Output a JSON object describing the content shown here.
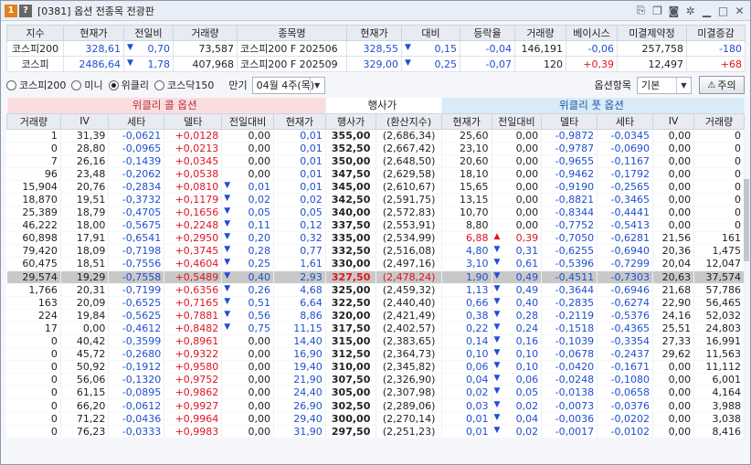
{
  "window": {
    "badges": [
      "1",
      "?"
    ],
    "title": "[0381] 옵션 전종목 전광판",
    "icons": [
      "link-icon",
      "copy-icon",
      "camera-icon",
      "gear-icon",
      "minimize-icon",
      "maximize-icon",
      "close-icon"
    ]
  },
  "index_table": {
    "left_headers": [
      "지수",
      "현재가",
      "전일비",
      "거래량"
    ],
    "right_headers": [
      "종목명",
      "현재가",
      "대비",
      "등락율",
      "거래량",
      "베이시스",
      "미결제약정",
      "미결증감"
    ],
    "left_rows": [
      {
        "name": "코스피200",
        "price": "328,61",
        "arrow": "▼",
        "change": "0,70",
        "volume": "73,587"
      },
      {
        "name": "코스피",
        "price": "2486,64",
        "arrow": "▼",
        "change": "1,78",
        "volume": "407,968"
      }
    ],
    "right_rows": [
      {
        "name": "코스피200 F 202506",
        "price": "328,55",
        "arrow": "▼",
        "change": "0,15",
        "rate": "-0,04",
        "volume": "146,191",
        "basis": "-0,06",
        "oi": "257,758",
        "oi_change": "-180"
      },
      {
        "name": "코스피200 F 202509",
        "price": "329,00",
        "arrow": "▼",
        "change": "0,25",
        "rate": "-0,07",
        "volume": "120",
        "basis": "+0,39",
        "oi": "12,497",
        "oi_change": "+68"
      }
    ]
  },
  "filter": {
    "radios": [
      {
        "label": "코스피200",
        "checked": false
      },
      {
        "label": "미니",
        "checked": false
      },
      {
        "label": "위클리",
        "checked": true
      },
      {
        "label": "코스닥150",
        "checked": false
      }
    ],
    "expiry_label": "만기",
    "expiry_value": "04월 4주(목)",
    "option_item_label": "옵션항목",
    "option_item_value": "기본",
    "warn_button": "주의"
  },
  "options": {
    "call_title": "위클리 콜 옵션",
    "strike_title": "행사가",
    "put_title": "위클리 풋 옵션",
    "call_headers": [
      "거래량",
      "IV",
      "세타",
      "델타",
      "전일대비",
      "현재가"
    ],
    "strike_headers": [
      "행사가",
      "(환산지수)"
    ],
    "put_headers": [
      "현재가",
      "전일대비",
      "델타",
      "세타",
      "IV",
      "거래량"
    ],
    "rows": [
      {
        "cv": "1",
        "civ": "31,39",
        "cth": "-0,0621",
        "cde": "+0,0128",
        "cca": "",
        "cch": "0,00",
        "cp": "0,01",
        "st": "355,00",
        "cx": "(2,686,34)",
        "pp": "25,60",
        "pca": "",
        "pch": "0,00",
        "pde": "-0,9872",
        "pth": "-0,0345",
        "piv": "0,00",
        "pv": "0"
      },
      {
        "cv": "0",
        "civ": "28,80",
        "cth": "-0,0965",
        "cde": "+0,0213",
        "cca": "",
        "cch": "0,00",
        "cp": "0,01",
        "st": "352,50",
        "cx": "(2,667,42)",
        "pp": "23,10",
        "pca": "",
        "pch": "0,00",
        "pde": "-0,9787",
        "pth": "-0,0690",
        "piv": "0,00",
        "pv": "0"
      },
      {
        "cv": "7",
        "civ": "26,16",
        "cth": "-0,1439",
        "cde": "+0,0345",
        "cca": "",
        "cch": "0,00",
        "cp": "0,01",
        "st": "350,00",
        "cx": "(2,648,50)",
        "pp": "20,60",
        "pca": "",
        "pch": "0,00",
        "pde": "-0,9655",
        "pth": "-0,1167",
        "piv": "0,00",
        "pv": "0"
      },
      {
        "cv": "96",
        "civ": "23,48",
        "cth": "-0,2062",
        "cde": "+0,0538",
        "cca": "",
        "cch": "0,00",
        "cp": "0,01",
        "st": "347,50",
        "cx": "(2,629,58)",
        "pp": "18,10",
        "pca": "",
        "pch": "0,00",
        "pde": "-0,9462",
        "pth": "-0,1792",
        "piv": "0,00",
        "pv": "0"
      },
      {
        "cv": "15,904",
        "civ": "20,76",
        "cth": "-0,2834",
        "cde": "+0,0810",
        "cca": "▼",
        "cch": "0,01",
        "cp": "0,01",
        "st": "345,00",
        "cx": "(2,610,67)",
        "pp": "15,65",
        "pca": "",
        "pch": "0,00",
        "pde": "-0,9190",
        "pth": "-0,2565",
        "piv": "0,00",
        "pv": "0"
      },
      {
        "cv": "18,870",
        "civ": "19,51",
        "cth": "-0,3732",
        "cde": "+0,1179",
        "cca": "▼",
        "cch": "0,02",
        "cp": "0,02",
        "st": "342,50",
        "cx": "(2,591,75)",
        "pp": "13,15",
        "pca": "",
        "pch": "0,00",
        "pde": "-0,8821",
        "pth": "-0,3465",
        "piv": "0,00",
        "pv": "0"
      },
      {
        "cv": "25,389",
        "civ": "18,79",
        "cth": "-0,4705",
        "cde": "+0,1656",
        "cca": "▼",
        "cch": "0,05",
        "cp": "0,05",
        "st": "340,00",
        "cx": "(2,572,83)",
        "pp": "10,70",
        "pca": "",
        "pch": "0,00",
        "pde": "-0,8344",
        "pth": "-0,4441",
        "piv": "0,00",
        "pv": "0"
      },
      {
        "cv": "46,222",
        "civ": "18,00",
        "cth": "-0,5675",
        "cde": "+0,2248",
        "cca": "▼",
        "cch": "0,11",
        "cp": "0,12",
        "st": "337,50",
        "cx": "(2,553,91)",
        "pp": "8,80",
        "pca": "",
        "pch": "0,00",
        "pde": "-0,7752",
        "pth": "-0,5413",
        "piv": "0,00",
        "pv": "0"
      },
      {
        "cv": "60,898",
        "civ": "17,91",
        "cth": "-0,6541",
        "cde": "+0,2950",
        "cca": "▼",
        "cch": "0,20",
        "cp": "0,32",
        "st": "335,00",
        "cx": "(2,534,99)",
        "pp": "6,88",
        "pca": "▲",
        "pch": "0,39",
        "pde": "-0,7050",
        "pth": "-0,6281",
        "piv": "21,56",
        "pv": "161"
      },
      {
        "cv": "79,420",
        "civ": "18,09",
        "cth": "-0,7198",
        "cde": "+0,3745",
        "cca": "▼",
        "cch": "0,28",
        "cp": "0,77",
        "st": "332,50",
        "cx": "(2,516,08)",
        "pp": "4,80",
        "pca": "▼",
        "pch": "0,31",
        "pde": "-0,6255",
        "pth": "-0,6940",
        "piv": "20,36",
        "pv": "1,475"
      },
      {
        "cv": "60,475",
        "civ": "18,51",
        "cth": "-0,7556",
        "cde": "+0,4604",
        "cca": "▼",
        "cch": "0,25",
        "cp": "1,61",
        "st": "330,00",
        "cx": "(2,497,16)",
        "pp": "3,10",
        "pca": "▼",
        "pch": "0,61",
        "pde": "-0,5396",
        "pth": "-0,7299",
        "piv": "20,04",
        "pv": "12,047"
      },
      {
        "cv": "29,574",
        "civ": "19,29",
        "cth": "-0,7558",
        "cde": "+0,5489",
        "cca": "▼",
        "cch": "0,40",
        "cp": "2,93",
        "st": "327,50",
        "cx": "(2,478,24)",
        "pp": "1,90",
        "pca": "▼",
        "pch": "0,49",
        "pde": "-0,4511",
        "pth": "-0,7303",
        "piv": "20,63",
        "pv": "37,574",
        "hl": true
      },
      {
        "cv": "1,766",
        "civ": "20,31",
        "cth": "-0,7199",
        "cde": "+0,6356",
        "cca": "▼",
        "cch": "0,26",
        "cp": "4,68",
        "st": "325,00",
        "cx": "(2,459,32)",
        "pp": "1,13",
        "pca": "▼",
        "pch": "0,49",
        "pde": "-0,3644",
        "pth": "-0,6946",
        "piv": "21,68",
        "pv": "57,786"
      },
      {
        "cv": "163",
        "civ": "20,09",
        "cth": "-0,6525",
        "cde": "+0,7165",
        "cca": "▼",
        "cch": "0,51",
        "cp": "6,64",
        "st": "322,50",
        "cx": "(2,440,40)",
        "pp": "0,66",
        "pca": "▼",
        "pch": "0,40",
        "pde": "-0,2835",
        "pth": "-0,6274",
        "piv": "22,90",
        "pv": "56,465"
      },
      {
        "cv": "224",
        "civ": "19,84",
        "cth": "-0,5625",
        "cde": "+0,7881",
        "cca": "▼",
        "cch": "0,56",
        "cp": "8,86",
        "st": "320,00",
        "cx": "(2,421,49)",
        "pp": "0,38",
        "pca": "▼",
        "pch": "0,28",
        "pde": "-0,2119",
        "pth": "-0,5376",
        "piv": "24,16",
        "pv": "52,032"
      },
      {
        "cv": "17",
        "civ": "0,00",
        "cth": "-0,4612",
        "cde": "+0,8482",
        "cca": "▼",
        "cch": "0,75",
        "cp": "11,15",
        "st": "317,50",
        "cx": "(2,402,57)",
        "pp": "0,22",
        "pca": "▼",
        "pch": "0,24",
        "pde": "-0,1518",
        "pth": "-0,4365",
        "piv": "25,51",
        "pv": "24,803"
      },
      {
        "cv": "0",
        "civ": "40,42",
        "cth": "-0,3599",
        "cde": "+0,8961",
        "cca": "",
        "cch": "0,00",
        "cp": "14,40",
        "st": "315,00",
        "cx": "(2,383,65)",
        "pp": "0,14",
        "pca": "▼",
        "pch": "0,16",
        "pde": "-0,1039",
        "pth": "-0,3354",
        "piv": "27,33",
        "pv": "16,991"
      },
      {
        "cv": "0",
        "civ": "45,72",
        "cth": "-0,2680",
        "cde": "+0,9322",
        "cca": "",
        "cch": "0,00",
        "cp": "16,90",
        "st": "312,50",
        "cx": "(2,364,73)",
        "pp": "0,10",
        "pca": "▼",
        "pch": "0,10",
        "pde": "-0,0678",
        "pth": "-0,2437",
        "piv": "29,62",
        "pv": "11,563"
      },
      {
        "cv": "0",
        "civ": "50,92",
        "cth": "-0,1912",
        "cde": "+0,9580",
        "cca": "",
        "cch": "0,00",
        "cp": "19,40",
        "st": "310,00",
        "cx": "(2,345,82)",
        "pp": "0,06",
        "pca": "▼",
        "pch": "0,10",
        "pde": "-0,0420",
        "pth": "-0,1671",
        "piv": "0,00",
        "pv": "11,112"
      },
      {
        "cv": "0",
        "civ": "56,06",
        "cth": "-0,1320",
        "cde": "+0,9752",
        "cca": "",
        "cch": "0,00",
        "cp": "21,90",
        "st": "307,50",
        "cx": "(2,326,90)",
        "pp": "0,04",
        "pca": "▼",
        "pch": "0,06",
        "pde": "-0,0248",
        "pth": "-0,1080",
        "piv": "0,00",
        "pv": "6,001"
      },
      {
        "cv": "0",
        "civ": "61,15",
        "cth": "-0,0895",
        "cde": "+0,9862",
        "cca": "",
        "cch": "0,00",
        "cp": "24,40",
        "st": "305,00",
        "cx": "(2,307,98)",
        "pp": "0,02",
        "pca": "▼",
        "pch": "0,05",
        "pde": "-0,0138",
        "pth": "-0,0658",
        "piv": "0,00",
        "pv": "4,164"
      },
      {
        "cv": "0",
        "civ": "66,20",
        "cth": "-0,0612",
        "cde": "+0,9927",
        "cca": "",
        "cch": "0,00",
        "cp": "26,90",
        "st": "302,50",
        "cx": "(2,289,06)",
        "pp": "0,03",
        "pca": "▼",
        "pch": "0,02",
        "pde": "-0,0073",
        "pth": "-0,0376",
        "piv": "0,00",
        "pv": "3,988"
      },
      {
        "cv": "0",
        "civ": "71,22",
        "cth": "-0,0436",
        "cde": "+0,9964",
        "cca": "",
        "cch": "0,00",
        "cp": "29,40",
        "st": "300,00",
        "cx": "(2,270,14)",
        "pp": "0,01",
        "pca": "▼",
        "pch": "0,04",
        "pde": "-0,0036",
        "pth": "-0,0202",
        "piv": "0,00",
        "pv": "3,038"
      },
      {
        "cv": "0",
        "civ": "76,23",
        "cth": "-0,0333",
        "cde": "+0,9983",
        "cca": "",
        "cch": "0,00",
        "cp": "31,90",
        "st": "297,50",
        "cx": "(2,251,23)",
        "pp": "0,01",
        "pca": "▼",
        "pch": "0,02",
        "pde": "-0,0017",
        "pth": "-0,0102",
        "piv": "0,00",
        "pv": "8,416"
      }
    ]
  },
  "colors": {
    "up": "#e0141e",
    "down": "#1f4fd0",
    "call_header_bg": "#fbdde0",
    "put_header_bg": "#d9ebf9",
    "selected_row_bg": "#c8c8c8"
  }
}
